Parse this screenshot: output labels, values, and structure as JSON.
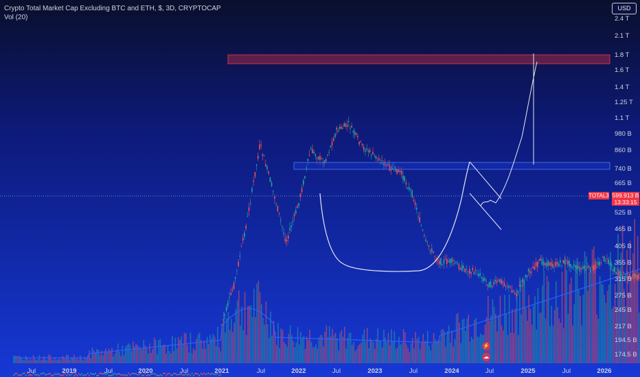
{
  "legend": {
    "title": "Crypto Total Market Cap Excluding BTC and ETH, $, 3D, CRYPTOCAP",
    "volume": "Vol (20)"
  },
  "currency_button": "USD",
  "price_label": {
    "symbol": "TOTAL3",
    "price": "599.913 B",
    "countdown": "13:33:15"
  },
  "colors": {
    "up": "#26a69a",
    "down": "#ef5350",
    "volume_ma": "#2962ff",
    "box": "#f23645",
    "line": "#ffffff",
    "grid_dotted": "#9aa3c7"
  },
  "icons": [
    "lightning-icon",
    "cloud-icon"
  ],
  "chart_data": {
    "type": "candlestick",
    "title": "Crypto Total Market Cap Excluding BTC and ETH, $, 3D, CRYPTOCAP",
    "y_scale": "log",
    "y_unit": "USD",
    "y_ticks": [
      "2.4 T",
      "2.1 T",
      "1.8 T",
      "1.6 T",
      "1.4 T",
      "1.25 T",
      "1.1 T",
      "980 B",
      "860 B",
      "740 B",
      "665 B",
      "525 B",
      "465 B",
      "405 B",
      "355 B",
      "315 B",
      "275 B",
      "245 B",
      "217 B",
      "194.5 B",
      "174.5 B"
    ],
    "x_ticks": [
      {
        "label": "Jul",
        "year": false
      },
      {
        "label": "2019",
        "year": true
      },
      {
        "label": "Jul",
        "year": false
      },
      {
        "label": "2020",
        "year": true
      },
      {
        "label": "Jul",
        "year": false
      },
      {
        "label": "2021",
        "year": true
      },
      {
        "label": "Jul",
        "year": false
      },
      {
        "label": "2022",
        "year": true
      },
      {
        "label": "Jul",
        "year": false
      },
      {
        "label": "2023",
        "year": true
      },
      {
        "label": "Jul",
        "year": false
      },
      {
        "label": "2024",
        "year": true
      },
      {
        "label": "Jul",
        "year": false
      },
      {
        "label": "2025",
        "year": true
      },
      {
        "label": "Jul",
        "year": false
      },
      {
        "label": "2026",
        "year": true
      }
    ],
    "price_path_t": [
      2021.0,
      2021.08,
      2021.16,
      2021.25,
      2021.33,
      2021.42,
      2021.5,
      2021.58,
      2021.67,
      2021.75,
      2021.83,
      2021.92,
      2022.0,
      2022.08,
      2022.17,
      2022.25,
      2022.33,
      2022.42,
      2022.5,
      2022.58,
      2022.67,
      2022.75,
      2022.83,
      2022.92,
      2023.0,
      2023.08,
      2023.17,
      2023.25,
      2023.33,
      2023.42,
      2023.5,
      2023.58,
      2023.67,
      2023.75,
      2023.83,
      2023.92,
      2024.0,
      2024.08,
      2024.17,
      2024.25,
      2024.33,
      2024.42,
      2024.5
    ],
    "price_path_v": [
      220,
      300,
      480,
      900,
      640,
      420,
      560,
      860,
      780,
      1000,
      1050,
      880,
      820,
      760,
      720,
      600,
      420,
      360,
      360,
      340,
      330,
      300,
      310,
      280,
      330,
      360,
      350,
      360,
      340,
      340,
      370,
      330,
      320,
      320,
      330,
      360,
      430,
      530,
      660,
      770,
      640,
      600,
      560
    ],
    "current_price": "599.913 B",
    "annotations": [
      {
        "type": "rectangle",
        "label": "resistance-zone-top",
        "from_value": "1.7 T",
        "to_value": "1.8 T"
      },
      {
        "type": "rectangle",
        "label": "resistance-zone-mid",
        "from_value": "740 B",
        "to_value": "760 B"
      },
      {
        "type": "curve",
        "label": "cup-pattern"
      },
      {
        "type": "wedge",
        "label": "falling-wedge"
      },
      {
        "type": "projection",
        "label": "breakout-projection"
      },
      {
        "type": "vertical-line",
        "label": "measured-move"
      }
    ]
  }
}
